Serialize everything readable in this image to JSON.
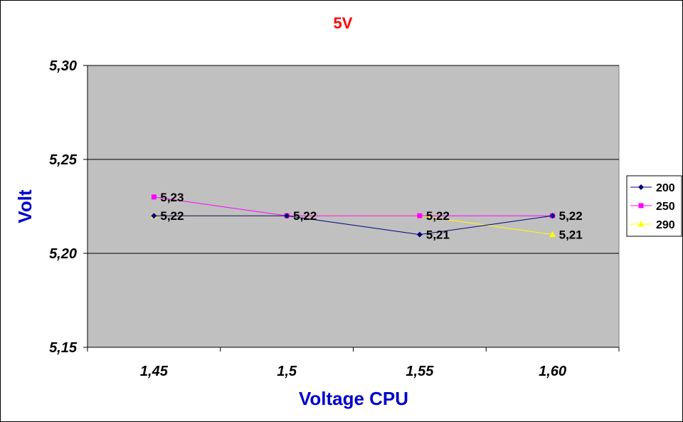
{
  "chart_data": {
    "type": "line",
    "title": "5V",
    "xlabel": "Voltage CPU",
    "ylabel": "Volt",
    "categories": [
      "1,45",
      "1,5",
      "1,55",
      "1,60"
    ],
    "ylim": [
      5.15,
      5.3
    ],
    "yticks": [
      5.15,
      5.2,
      5.25,
      5.3
    ],
    "ytick_labels": [
      "5,15",
      "5,20",
      "5,25",
      "5,30"
    ],
    "grid": true,
    "legend_position": "right",
    "series": [
      {
        "name": "200",
        "values": [
          5.22,
          5.22,
          5.21,
          5.22
        ],
        "color": "#000080",
        "marker": "diamond"
      },
      {
        "name": "250",
        "values": [
          5.23,
          5.22,
          5.22,
          5.22
        ],
        "color": "#FF00FF",
        "marker": "square"
      },
      {
        "name": "290",
        "values": [
          5.22,
          5.22,
          5.22,
          5.21
        ],
        "color": "#FFFF00",
        "marker": "triangle"
      }
    ],
    "data_labels": [
      {
        "series": "250",
        "category": "1,45",
        "text": "5,23"
      },
      {
        "series": "290",
        "category": "1,45",
        "text": "5,22"
      },
      {
        "series": "200",
        "category": "1,5",
        "text": "5,22"
      },
      {
        "series": "250",
        "category": "1,55",
        "text": "5,22"
      },
      {
        "series": "200",
        "category": "1,55",
        "text": "5,21"
      },
      {
        "series": "200",
        "category": "1,60",
        "text": "5,22"
      },
      {
        "series": "290",
        "category": "1,60",
        "text": "5,21"
      }
    ],
    "colors": {
      "title": "#FF0000",
      "axis_title": "#0000CC",
      "plot_background": "#C0C0C0",
      "gridline": "#000000"
    }
  }
}
